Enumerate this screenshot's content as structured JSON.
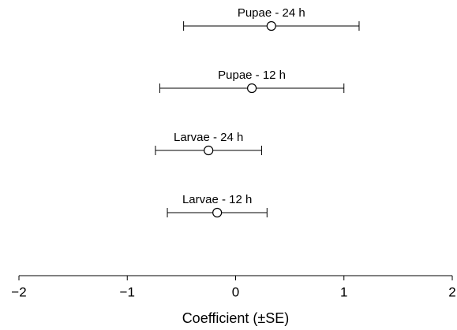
{
  "chart_data": {
    "type": "errorbar",
    "x_label": "Coefficient (±SE)",
    "categories": [
      "Pupae - 24 h",
      "Pupae - 12 h",
      "Larvae - 24 h",
      "Larvae - 12 h"
    ],
    "values": [
      0.33,
      0.15,
      -0.25,
      -0.17
    ],
    "errors": [
      0.81,
      0.85,
      0.49,
      0.46
    ],
    "color": "#000000",
    "xlim": [
      -2,
      2
    ],
    "xticks": [
      {
        "value": -2,
        "label": "−2"
      },
      {
        "value": -1,
        "label": "−1"
      },
      0,
      1,
      2
    ]
  }
}
